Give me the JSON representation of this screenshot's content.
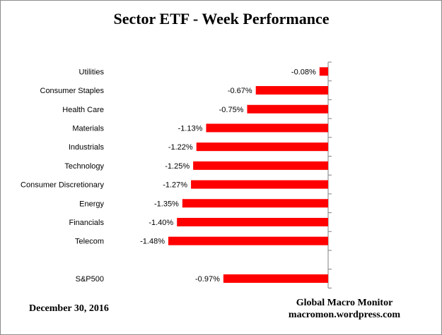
{
  "chart_data": {
    "type": "bar",
    "orientation": "horizontal",
    "title": "Sector ETF - Week Performance",
    "xlabel": "",
    "ylabel": "",
    "value_format": "percent_2dp",
    "xlim": [
      -1.5,
      0
    ],
    "grid": false,
    "legend": "none",
    "bar_color": "#ff0000",
    "categories": [
      "Utilities",
      "Consumer Staples",
      "Health Care",
      "Materials",
      "Industrials",
      "Technology",
      "Consumer Discretionary",
      "Energy",
      "Financials",
      "Telecom",
      "",
      "S&P500"
    ],
    "values": [
      -0.08,
      -0.67,
      -0.75,
      -1.13,
      -1.22,
      -1.25,
      -1.27,
      -1.35,
      -1.4,
      -1.48,
      null,
      -0.97
    ],
    "data_labels": [
      "-0.08%",
      "-0.67%",
      "-0.75%",
      "-1.13%",
      "-1.22%",
      "-1.25%",
      "-1.27%",
      "-1.35%",
      "-1.40%",
      "-1.48%",
      "",
      "-0.97%"
    ]
  },
  "footer": {
    "date": "December 30,  2016",
    "source_name": "Global Macro Monitor",
    "source_url": "macromon.wordpress.com"
  }
}
